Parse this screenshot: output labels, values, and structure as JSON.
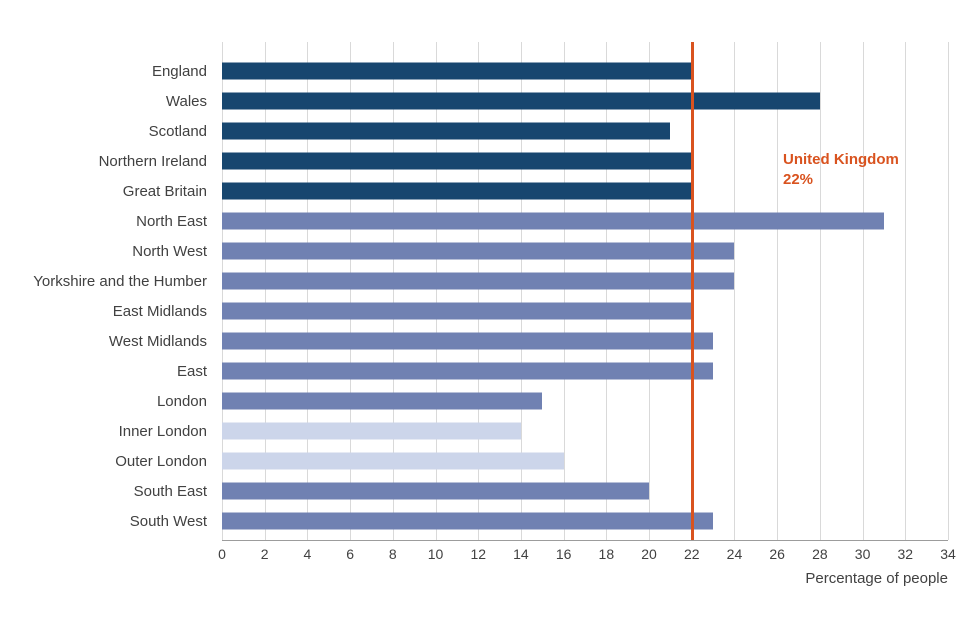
{
  "chart_data": {
    "type": "bar",
    "orientation": "horizontal",
    "title": "",
    "xlabel": "Percentage of people",
    "ylabel": "",
    "xlim": [
      0,
      34
    ],
    "xticks": [
      0,
      2,
      4,
      6,
      8,
      10,
      12,
      14,
      16,
      18,
      20,
      22,
      24,
      26,
      28,
      30,
      32,
      34
    ],
    "grid": true,
    "categories": [
      "England",
      "Wales",
      "Scotland",
      "Northern Ireland",
      "Great Britain",
      "North East",
      "North West",
      "Yorkshire and the Humber",
      "East Midlands",
      "West Midlands",
      "East",
      "London",
      "Inner London",
      "Outer London",
      "South East",
      "South West"
    ],
    "values": [
      22,
      28,
      21,
      22,
      22,
      31,
      24,
      24,
      22,
      23,
      23,
      15,
      14,
      16,
      20,
      23
    ],
    "groups": [
      "nation",
      "nation",
      "nation",
      "nation",
      "nation",
      "region",
      "region",
      "region",
      "region",
      "region",
      "region",
      "region",
      "london_sub",
      "london_sub",
      "region",
      "region"
    ],
    "group_colors": {
      "nation": "#17466f",
      "region": "#7081b2",
      "london_sub": "#ccd5ea"
    },
    "reference_line": {
      "value": 22,
      "color": "#d9531f",
      "label": "United Kingdom",
      "value_label": "22%"
    },
    "gridline_color": "#d9d9d9",
    "axis_line_color": "#9c9c9c"
  }
}
